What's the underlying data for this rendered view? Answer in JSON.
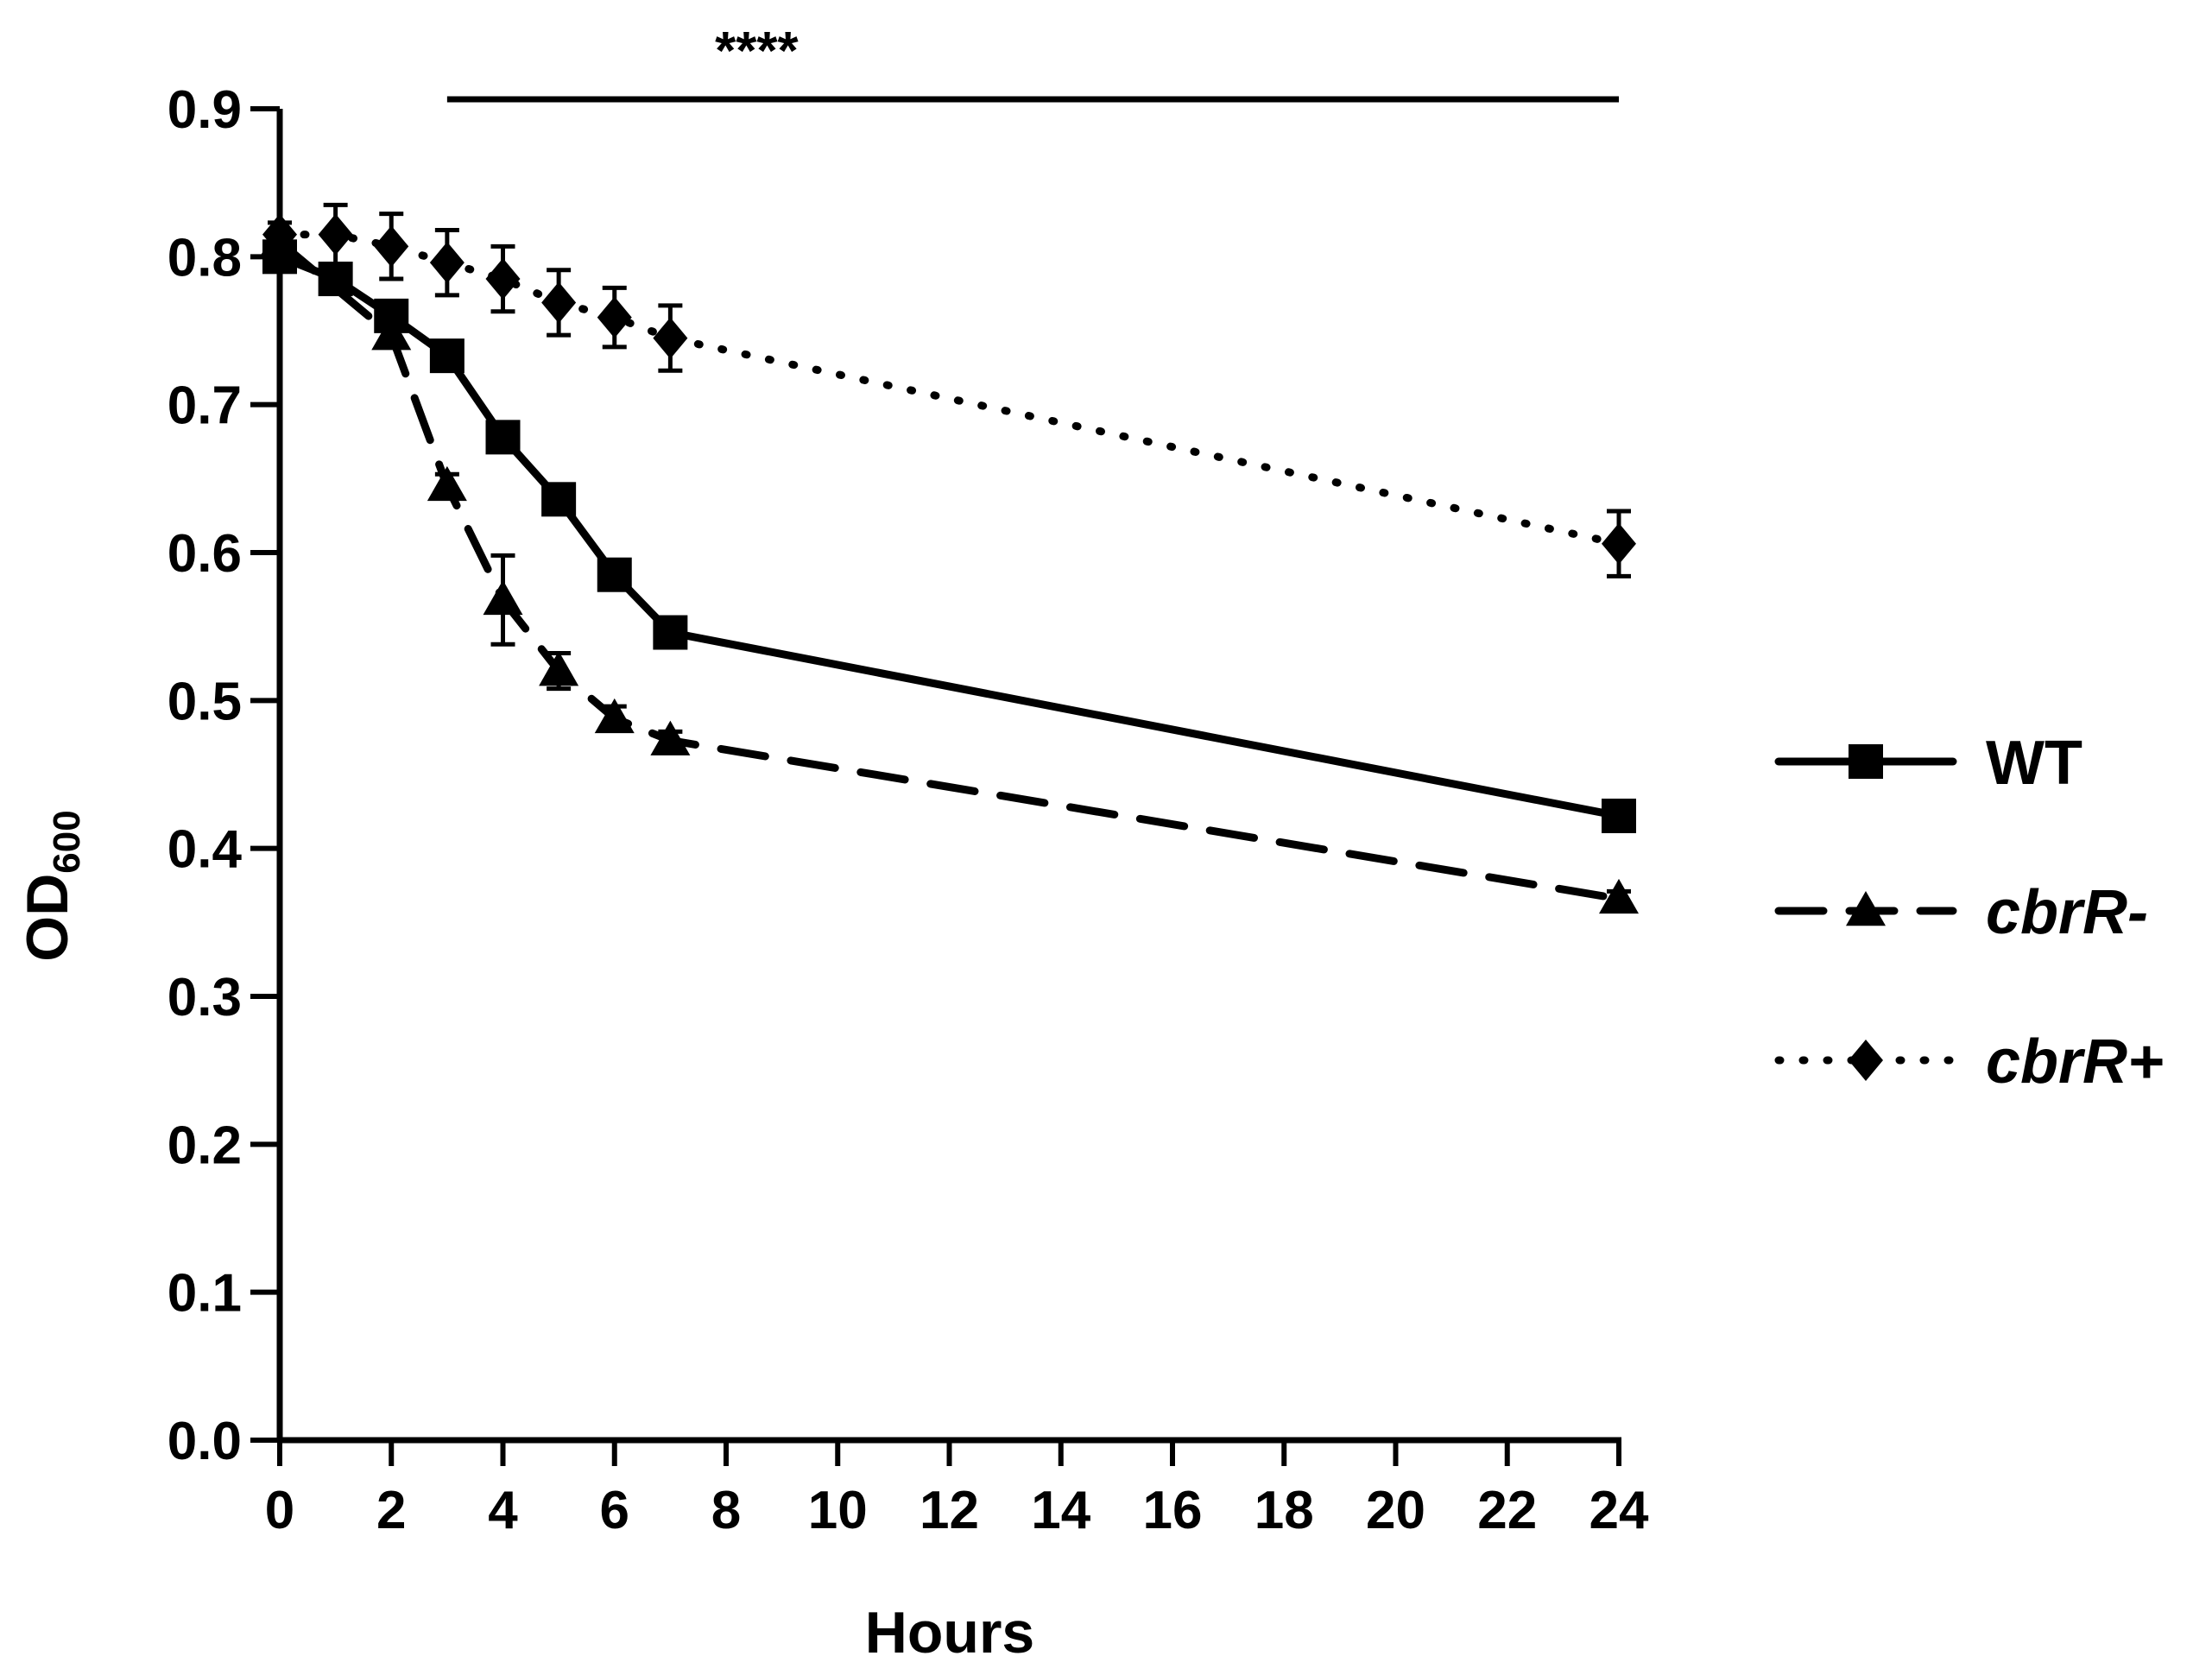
{
  "chart_data": {
    "type": "line",
    "xlabel": "Hours",
    "ylabel_main": "OD",
    "ylabel_sub": "600",
    "xlim": [
      0,
      24
    ],
    "ylim": [
      0,
      0.9
    ],
    "x_ticks": [
      "0",
      "2",
      "4",
      "6",
      "8",
      "10",
      "12",
      "14",
      "16",
      "18",
      "20",
      "22",
      "24"
    ],
    "y_ticks": [
      "0.0",
      "0.1",
      "0.2",
      "0.3",
      "0.4",
      "0.5",
      "0.6",
      "0.7",
      "0.8",
      "0.9"
    ],
    "grid": false,
    "legend_position": "right",
    "significance": {
      "label": "****",
      "x_start": 3,
      "x_end": 24
    },
    "series": [
      {
        "name": "WT",
        "italic": false,
        "marker": "square",
        "line": "solid",
        "color": "#000000",
        "points": [
          {
            "x": 0,
            "y": 0.8,
            "err": 0.0
          },
          {
            "x": 1,
            "y": 0.785,
            "err": 0.005
          },
          {
            "x": 2,
            "y": 0.76,
            "err": 0.008
          },
          {
            "x": 3,
            "y": 0.733,
            "err": 0.006
          },
          {
            "x": 4,
            "y": 0.678,
            "err": 0.008
          },
          {
            "x": 5,
            "y": 0.636,
            "err": 0.008
          },
          {
            "x": 6,
            "y": 0.585,
            "err": 0.008
          },
          {
            "x": 7,
            "y": 0.546,
            "err": 0.006
          },
          {
            "x": 24,
            "y": 0.422,
            "err": 0.005
          }
        ]
      },
      {
        "name": "cbrR-",
        "italic": true,
        "marker": "triangle",
        "line": "dashed",
        "color": "#000000",
        "points": [
          {
            "x": 0,
            "y": 0.81,
            "err": 0.005
          },
          {
            "x": 2,
            "y": 0.747,
            "err": 0.008
          },
          {
            "x": 3,
            "y": 0.645,
            "err": 0.008
          },
          {
            "x": 4,
            "y": 0.568,
            "err": 0.03
          },
          {
            "x": 5,
            "y": 0.52,
            "err": 0.012
          },
          {
            "x": 6,
            "y": 0.488,
            "err": 0.008
          },
          {
            "x": 7,
            "y": 0.473,
            "err": 0.006
          },
          {
            "x": 24,
            "y": 0.366,
            "err": 0.005
          }
        ]
      },
      {
        "name": "cbrR+",
        "italic": true,
        "marker": "diamond",
        "line": "dotted",
        "color": "#000000",
        "points": [
          {
            "x": 0,
            "y": 0.815,
            "err": 0.008
          },
          {
            "x": 1,
            "y": 0.815,
            "err": 0.02
          },
          {
            "x": 2,
            "y": 0.807,
            "err": 0.022
          },
          {
            "x": 3,
            "y": 0.796,
            "err": 0.022
          },
          {
            "x": 4,
            "y": 0.785,
            "err": 0.022
          },
          {
            "x": 5,
            "y": 0.769,
            "err": 0.022
          },
          {
            "x": 6,
            "y": 0.759,
            "err": 0.02
          },
          {
            "x": 7,
            "y": 0.745,
            "err": 0.022
          },
          {
            "x": 24,
            "y": 0.606,
            "err": 0.022
          }
        ]
      }
    ]
  }
}
